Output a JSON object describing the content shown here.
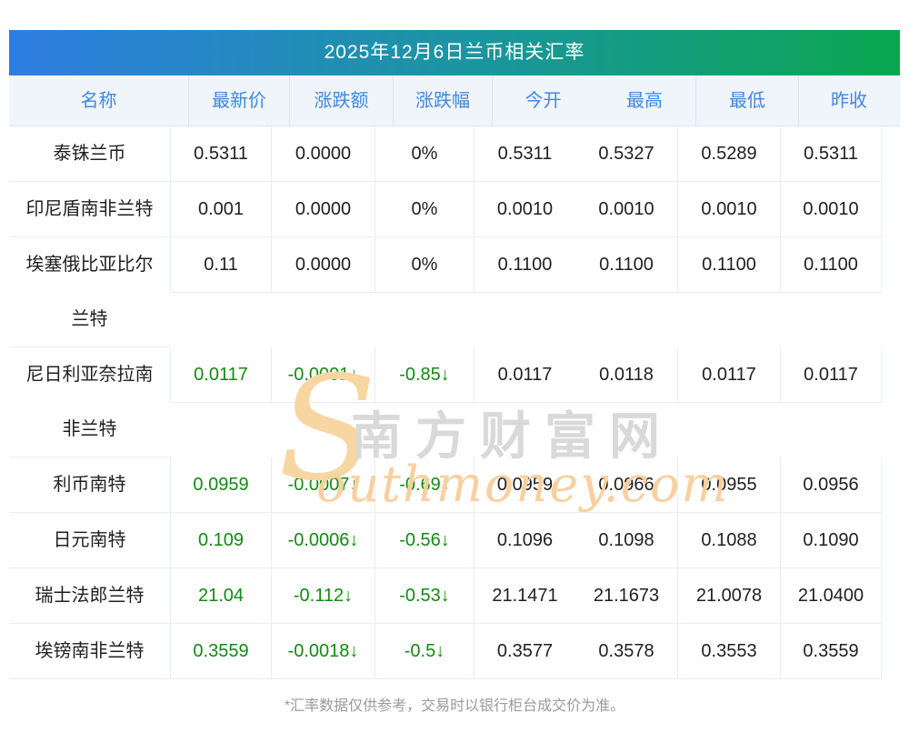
{
  "banner": {
    "title": "2025年12月6日兰币相关汇率"
  },
  "chart_data": {
    "type": "table",
    "title": "2025年12月6日兰币相关汇率",
    "columns": [
      "名称",
      "最新价",
      "涨跌额",
      "涨跌幅",
      "今开",
      "最高",
      "最低",
      "昨收"
    ],
    "rows": [
      {
        "name": "泰铢兰币",
        "trend": "flat",
        "values": [
          "0.5311",
          "0.0000",
          "0%",
          "0.5311",
          "0.5327",
          "0.5289",
          "0.5311"
        ]
      },
      {
        "name": "印尼盾南非兰特",
        "trend": "flat",
        "values": [
          "0.001",
          "0.0000",
          "0%",
          "0.0010",
          "0.0010",
          "0.0010",
          "0.0010"
        ]
      },
      {
        "name": "埃塞俄比亚比尔兰特",
        "trend": "flat",
        "values": [
          "0.11",
          "0.0000",
          "0%",
          "0.1100",
          "0.1100",
          "0.1100",
          "0.1100"
        ]
      },
      {
        "name": "尼日利亚奈拉南非兰特",
        "trend": "down",
        "values": [
          "0.0117",
          "-0.0001↓",
          "-0.85↓",
          "0.0117",
          "0.0118",
          "0.0117",
          "0.0117"
        ]
      },
      {
        "name": "利币南特",
        "trend": "down",
        "values": [
          "0.0959",
          "-0.0007↓",
          "-0.69↓",
          "0.0959",
          "0.0966",
          "0.0955",
          "0.0956"
        ]
      },
      {
        "name": "日元南特",
        "trend": "down",
        "values": [
          "0.109",
          "-0.0006↓",
          "-0.56↓",
          "0.1096",
          "0.1098",
          "0.1088",
          "0.1090"
        ]
      },
      {
        "name": "瑞士法郎兰特",
        "trend": "down",
        "values": [
          "21.04",
          "-0.112↓",
          "-0.53↓",
          "21.1471",
          "21.1673",
          "21.0078",
          "21.0400"
        ]
      },
      {
        "name": "埃镑南非兰特",
        "trend": "down",
        "values": [
          "0.3559",
          "-0.0018↓",
          "-0.5↓",
          "0.3577",
          "0.3578",
          "0.3553",
          "0.3559"
        ]
      }
    ],
    "layout_hints": {
      "grid": "row-and-column separators, no divider between 今开 and 最高",
      "down_values_color": "#128a12",
      "header_text_color": "#3d89e2"
    }
  },
  "watermark": {
    "s_glyph": "S",
    "cn_text": "南方财富网",
    "en_text": "outhmoney.com"
  },
  "footer": {
    "note": "*汇率数据仅供参考，交易时以银行柜台成交价为准。"
  },
  "colors": {
    "banner_gradient_start": "#2e7de1",
    "banner_gradient_end": "#0aa74f",
    "header_bg": "#f0f4fb",
    "header_text": "#3d89e2",
    "down_green": "#128a12",
    "grid_line": "#e8ecf4",
    "footnote_text": "#9a9a9a"
  }
}
